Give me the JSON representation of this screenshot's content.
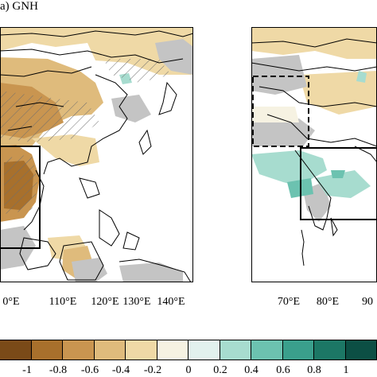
{
  "panel_a": {
    "title": "a) GNH",
    "lon_ticks": [
      "0°E",
      "110°E",
      "120°E",
      "130°E",
      "140°E"
    ]
  },
  "panel_b": {
    "lon_ticks": [
      "70°E",
      "80°E",
      "90"
    ]
  },
  "colorbar": {
    "labels": [
      "-1",
      "-0.8",
      "-0.6",
      "-0.4",
      "-0.2",
      "0",
      "0.2",
      "0.4",
      "0.6",
      "0.8",
      "1"
    ],
    "colors": [
      "#7a4a18",
      "#a8702c",
      "#c99550",
      "#dfbb7c",
      "#efd9a6",
      "#f6f2e2",
      "#e2f1ee",
      "#a7dccf",
      "#6cc2b0",
      "#3a9f8c",
      "#1c7765",
      "#0c4f44"
    ]
  },
  "colors": {
    "land_outline": "#000000",
    "masked_land": "#c4c4c4",
    "hatch": "#6e6e6e"
  }
}
